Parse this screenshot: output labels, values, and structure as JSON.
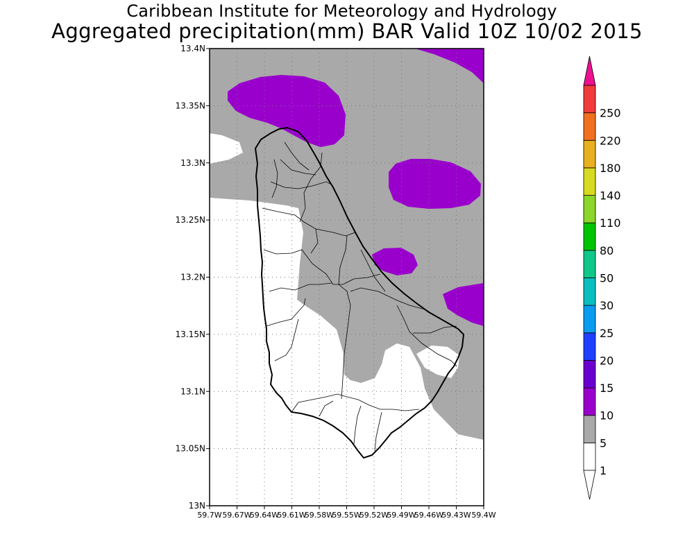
{
  "title": {
    "line1": "Caribbean Institute for Meteorology and Hydrology",
    "line2": "Aggregated precipitation(mm) BAR Valid 10Z 10/02 2015"
  },
  "map": {
    "region": "Barbados",
    "variable": "Aggregated precipitation (mm)",
    "lat_range": [
      13.0,
      13.4
    ],
    "lon_range": [
      -59.7,
      -59.4
    ],
    "lat_ticks": [
      "13.4N",
      "13.35N",
      "13.3N",
      "13.25N",
      "13.2N",
      "13.15N",
      "13.1N",
      "13.05N",
      "13N"
    ],
    "lon_ticks": [
      "59.7W",
      "59.67W",
      "59.64W",
      "59.61W",
      "59.58W",
      "59.55W",
      "59.52W",
      "59.49W",
      "59.46W",
      "59.43W",
      "59.4W"
    ],
    "gridlines": "dotted"
  },
  "colorbar": {
    "orientation": "vertical",
    "levels": [
      {
        "label": "1",
        "color": "#ffffff"
      },
      {
        "label": "5",
        "color": "#a9a9a9"
      },
      {
        "label": "10",
        "color": "#9a00cc"
      },
      {
        "label": "15",
        "color": "#6a00d0"
      },
      {
        "label": "20",
        "color": "#2040ff"
      },
      {
        "label": "25",
        "color": "#0a9cf0"
      },
      {
        "label": "30",
        "color": "#0abfc0"
      },
      {
        "label": "50",
        "color": "#10c78a"
      },
      {
        "label": "80",
        "color": "#00c400"
      },
      {
        "label": "110",
        "color": "#8ad62a"
      },
      {
        "label": "140",
        "color": "#d6da20"
      },
      {
        "label": "180",
        "color": "#e8b020"
      },
      {
        "label": "220",
        "color": "#f07020"
      },
      {
        "label": "250",
        "color": "#f03c3c"
      }
    ],
    "top_arrow_color": "#ee1090",
    "bottom_arrow_color": "#ffffff"
  }
}
